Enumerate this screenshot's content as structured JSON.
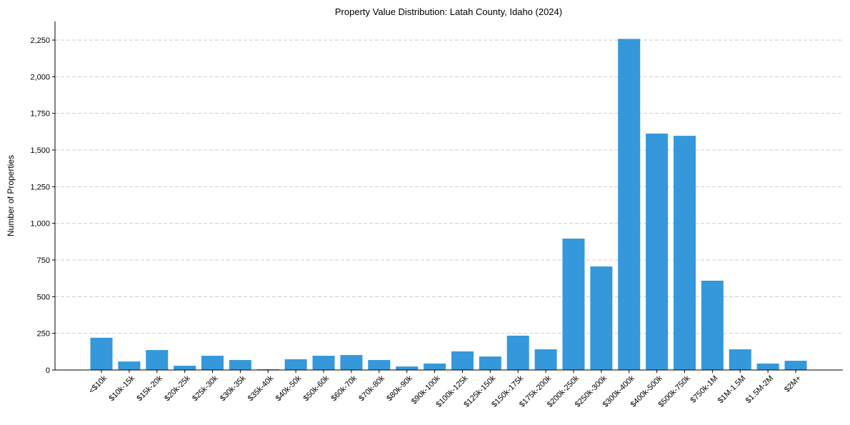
{
  "chart_data": {
    "type": "bar",
    "title": "Property Value Distribution: Latah County, Idaho (2024)",
    "xlabel": "",
    "ylabel": "Number of Properties",
    "ylim": [
      0,
      2377
    ],
    "yticks": [
      0,
      250,
      500,
      750,
      1000,
      1250,
      1500,
      1750,
      2000,
      2250
    ],
    "ytick_labels": [
      "0",
      "250",
      "500",
      "750",
      "1,000",
      "1,250",
      "1,500",
      "1,750",
      "2,000",
      "2,250"
    ],
    "grid": "horizontal-dashed",
    "color": "#3498db",
    "categories": [
      "<$10k",
      "$10k-15k",
      "$15k-20k",
      "$20k-25k",
      "$25k-30k",
      "$30k-35k",
      "$35k-40k",
      "$40k-50k",
      "$50k-60k",
      "$60k-70k",
      "$70k-80k",
      "$80k-90k",
      "$90k-100k",
      "$100k-125k",
      "$125k-150k",
      "$150k-175k",
      "$175k-200k",
      "$200k-250k",
      "$250k-300k",
      "$300k-400k",
      "$400k-500k",
      "$500k-750k",
      "$750k-1M",
      "$1M-1.5M",
      "$1.5M-2M",
      "$2M+"
    ],
    "values": [
      220,
      58,
      136,
      29,
      97,
      68,
      5,
      73,
      97,
      102,
      68,
      24,
      44,
      127,
      92,
      234,
      141,
      896,
      706,
      2258,
      1612,
      1597,
      609,
      141,
      44,
      63
    ]
  }
}
